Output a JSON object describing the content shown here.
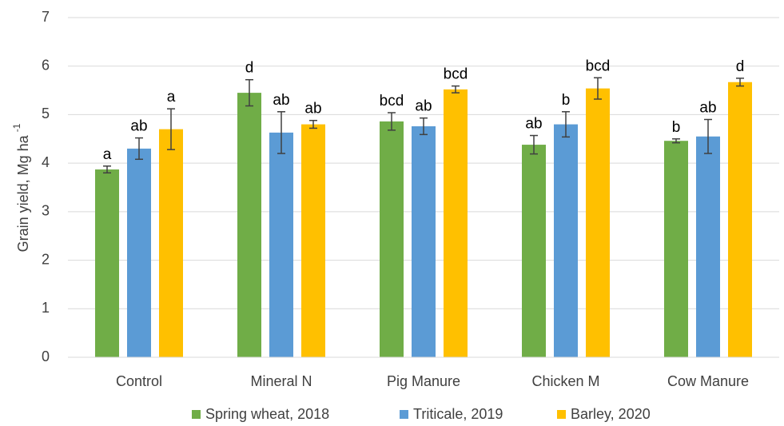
{
  "chart_data": {
    "type": "bar",
    "ylabel": {
      "text": "Grain yield, Mg ha",
      "superscript": "-1"
    },
    "categories": [
      "Control",
      "Mineral N",
      "Pig Manure",
      "Chicken M",
      "Cow Manure"
    ],
    "series": [
      {
        "name": "Spring wheat, 2018",
        "color": "#70ad47",
        "values": [
          3.87,
          5.45,
          4.86,
          4.38,
          4.46
        ],
        "errors": [
          0.07,
          0.27,
          0.18,
          0.19,
          0.04
        ],
        "annotations": [
          "a",
          "d",
          "bcd",
          "ab",
          "b"
        ]
      },
      {
        "name": "Triticale, 2019",
        "color": "#5b9bd5",
        "values": [
          4.3,
          4.63,
          4.76,
          4.8,
          4.55
        ],
        "errors": [
          0.22,
          0.43,
          0.17,
          0.26,
          0.35
        ],
        "annotations": [
          "ab",
          "ab",
          "ab",
          "b",
          "ab"
        ]
      },
      {
        "name": "Barley, 2020",
        "color": "#ffc000",
        "values": [
          4.7,
          4.8,
          5.52,
          5.54,
          5.67
        ],
        "errors": [
          0.42,
          0.08,
          0.07,
          0.22,
          0.08
        ],
        "annotations": [
          "a",
          "ab",
          "bcd",
          "bcd",
          "d"
        ]
      }
    ],
    "ylim": [
      0,
      7
    ],
    "yticks": [
      0,
      1,
      2,
      3,
      4,
      5,
      6,
      7
    ],
    "grid": true,
    "legend": "bottom"
  }
}
